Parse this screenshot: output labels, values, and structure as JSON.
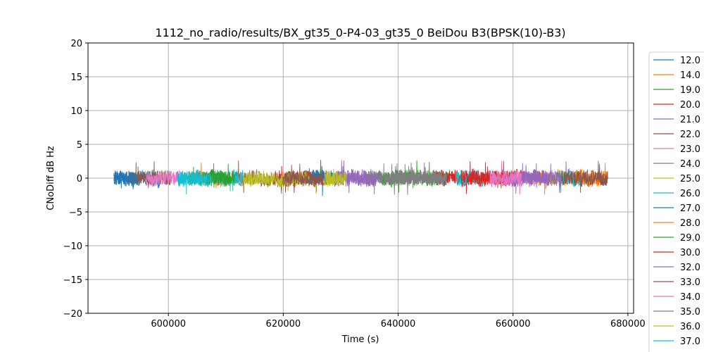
{
  "chart_data": {
    "type": "line",
    "title": "1112_no_radio/results/BX_gt35_0-P4-03_gt35_0 BeiDou B3(BPSK(10)-B3)",
    "xlabel": "Time (s)",
    "ylabel": "CNoDiff dB Hz",
    "xlim": [
      586000,
      681000
    ],
    "ylim": [
      -20,
      20
    ],
    "x_ticks": [
      600000,
      620000,
      640000,
      660000,
      680000
    ],
    "y_ticks": [
      -20,
      -15,
      -10,
      -5,
      0,
      5,
      10,
      15,
      20
    ],
    "grid": true,
    "legend_position": "right-outside",
    "series": [
      {
        "name": "12.0",
        "color": "#1f77b4",
        "segments": [
          [
            590500,
            598500
          ],
          [
            626000,
            630500
          ]
        ]
      },
      {
        "name": "14.0",
        "color": "#ff7f0e",
        "segments": [
          [
            604500,
            612000
          ],
          [
            663500,
            666500
          ]
        ]
      },
      {
        "name": "19.0",
        "color": "#2ca02c",
        "segments": [
          [
            603500,
            610500
          ],
          [
            636500,
            649000
          ]
        ]
      },
      {
        "name": "20.0",
        "color": "#d62728",
        "segments": [
          [
            618500,
            627500
          ],
          [
            646500,
            662000
          ]
        ]
      },
      {
        "name": "21.0",
        "color": "#9467bd",
        "segments": [
          [
            629500,
            636000
          ],
          [
            661500,
            670500
          ]
        ]
      },
      {
        "name": "22.0",
        "color": "#8c564b",
        "segments": [
          [
            593000,
            600500
          ],
          [
            611500,
            626000
          ],
          [
            670500,
            676500
          ]
        ]
      },
      {
        "name": "23.0",
        "color": "#e377c2",
        "segments": [
          [
            596000,
            602500
          ],
          [
            655500,
            663000
          ]
        ]
      },
      {
        "name": "24.0",
        "color": "#7f7f7f",
        "segments": [
          [
            634000,
            648500
          ]
        ]
      },
      {
        "name": "25.0",
        "color": "#bcbd22",
        "segments": [
          [
            612500,
            629500
          ],
          [
            666500,
            671500
          ]
        ]
      },
      {
        "name": "26.0",
        "color": "#17becf",
        "segments": [
          [
            601500,
            613000
          ],
          [
            650000,
            655000
          ],
          [
            668000,
            673000
          ]
        ]
      },
      {
        "name": "27.0",
        "color": "#1f77b4",
        "segments": [
          [
            590500,
            594500
          ],
          [
            624500,
            627500
          ]
        ]
      },
      {
        "name": "28.0",
        "color": "#ff7f0e",
        "segments": [
          [
            671000,
            676500
          ]
        ]
      },
      {
        "name": "29.0",
        "color": "#2ca02c",
        "segments": [
          [
            606000,
            611500
          ]
        ]
      },
      {
        "name": "30.0",
        "color": "#d62728",
        "segments": [
          [
            651000,
            660500
          ]
        ]
      },
      {
        "name": "32.0",
        "color": "#9467bd",
        "segments": [
          [
            629000,
            636500
          ],
          [
            659000,
            668500
          ]
        ]
      },
      {
        "name": "33.0",
        "color": "#8c564b",
        "segments": [
          [
            620000,
            627000
          ],
          [
            668500,
            676500
          ]
        ]
      },
      {
        "name": "34.0",
        "color": "#e377c2",
        "segments": [
          [
            656000,
            661500
          ]
        ]
      },
      {
        "name": "35.0",
        "color": "#7f7f7f",
        "segments": [
          [
            638500,
            647500
          ]
        ]
      },
      {
        "name": "36.0",
        "color": "#bcbd22",
        "segments": [
          [
            627000,
            631000
          ]
        ]
      },
      {
        "name": "37.0",
        "color": "#17becf",
        "segments": [
          [
            601500,
            607500
          ]
        ]
      }
    ],
    "trace_amplitude_dB": 1.0,
    "trace_peak_dB": 3.2,
    "trace_min_dB": -3.5
  }
}
